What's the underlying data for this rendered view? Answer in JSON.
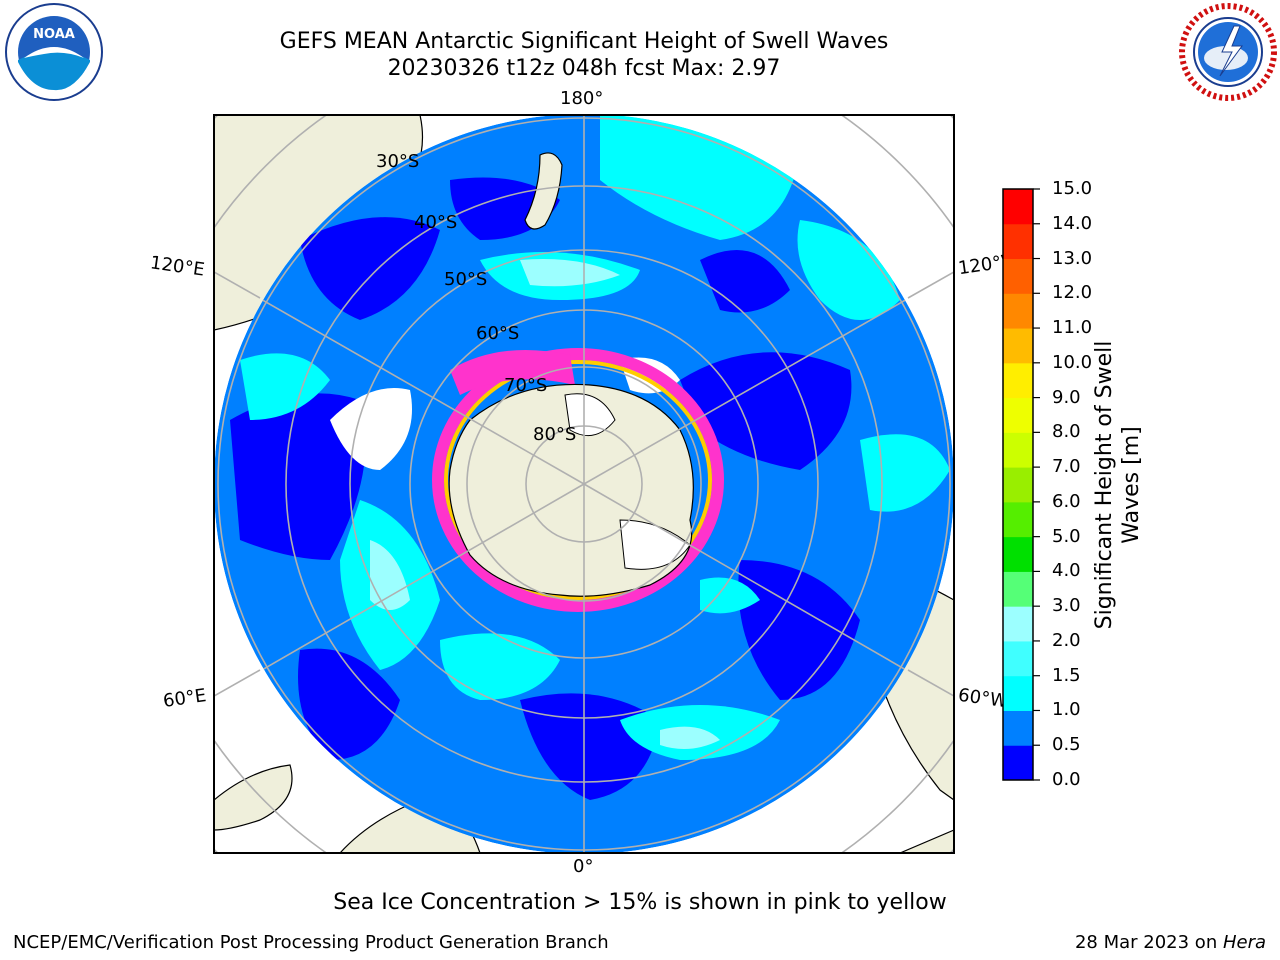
{
  "title": {
    "line1": "GEFS MEAN Antarctic Significant Height of Swell Waves",
    "line2": "20230326 t12z 048h fcst   Max: 2.97"
  },
  "logos": {
    "left": {
      "icon": "noaa-logo",
      "text": "NOAA"
    },
    "right": {
      "icon": "national-weather-service-logo"
    }
  },
  "map": {
    "projection": "south-polar-stereographic",
    "longitude_labels": {
      "top": "180°",
      "upper_left": "120°E",
      "upper_right": "120°W",
      "lower_left": "60°E",
      "lower_right": "60°W",
      "bottom": "0°"
    },
    "latitude_labels": [
      "30°S",
      "40°S",
      "50°S",
      "60°S",
      "70°S",
      "80°S"
    ],
    "colors": {
      "ocean_low": "#0000ff",
      "ocean_mid": "#0080ff",
      "ocean_high": "#00ffff",
      "ocean_peak": "#3cffff",
      "land": "#efefdb",
      "sea_ice_pink": "#ff33cc",
      "sea_ice_yellow": "#ffcc00",
      "grid": "#b0b0b0"
    }
  },
  "colorbar": {
    "title": "Significant Height of Swell Waves [m]",
    "ticks": [
      "0.0",
      "0.5",
      "1.0",
      "1.5",
      "2.0",
      "3.0",
      "4.0",
      "5.0",
      "6.0",
      "7.0",
      "8.0",
      "9.0",
      "10.0",
      "11.0",
      "12.0",
      "13.0",
      "14.0",
      "15.0"
    ],
    "colors": [
      "#0000ff",
      "#0080ff",
      "#00ffff",
      "#40ffff",
      "#9cffff",
      "#55ff77",
      "#00e000",
      "#55ee00",
      "#99ee00",
      "#ccff00",
      "#eeff00",
      "#ffee00",
      "#ffbb00",
      "#ff8800",
      "#ff6000",
      "#ff3000",
      "#ff0000"
    ]
  },
  "note": "Sea Ice Concentration > 15% is shown in pink to yellow",
  "credit": "NCEP/EMC/Verification Post Processing Product Generation Branch",
  "date": {
    "text": "28 Mar 2023 on ",
    "host": "Hera"
  }
}
